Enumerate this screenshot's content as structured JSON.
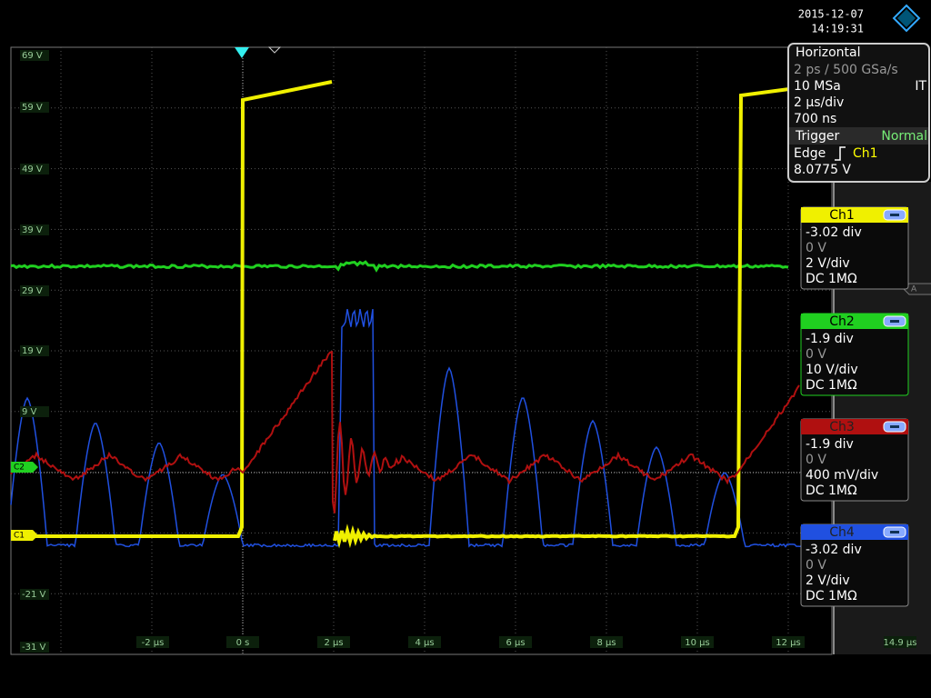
{
  "header": {
    "date": "2015-12-07",
    "time": "14:19:31"
  },
  "y_axis_labels": [
    "69 V",
    "59 V",
    "49 V",
    "39 V",
    "29 V",
    "19 V",
    "9 V",
    "-21 V",
    "-31 V"
  ],
  "x_axis_labels": [
    "-2 µs",
    "0 s",
    "2 µs",
    "4 µs",
    "6 µs",
    "8 µs",
    "10 µs",
    "12 µs",
    "14.9 µs"
  ],
  "markers": {
    "c1": "C1",
    "c2": "C2",
    "a": "A"
  },
  "horizontal": {
    "title": "Horizontal",
    "resolution": "2 ps / 500 GSa/s",
    "record_length": "10 MSa",
    "mode": "IT",
    "time_scale": "2 µs/div",
    "position": "700 ns"
  },
  "trigger": {
    "title": "Trigger",
    "mode": "Normal",
    "type": "Edge",
    "source": "Ch1",
    "level": "8.0775 V"
  },
  "channels": [
    {
      "name": "Ch1",
      "offset": "-3.02 div",
      "position": "0 V",
      "scale": "2 V/div",
      "coupling": "DC 1MΩ",
      "color": "#f0f000"
    },
    {
      "name": "Ch2",
      "offset": "-1.9 div",
      "position": "0 V",
      "scale": "10 V/div",
      "coupling": "DC 1MΩ",
      "color": "#20d020"
    },
    {
      "name": "Ch3",
      "offset": "-1.9 div",
      "position": "0 V",
      "scale": "400 mV/div",
      "coupling": "DC 1MΩ",
      "color": "#b01010"
    },
    {
      "name": "Ch4",
      "offset": "-3.02 div",
      "position": "0 V",
      "scale": "2 V/div",
      "coupling": "DC 1MΩ",
      "color": "#2050e0"
    }
  ]
}
